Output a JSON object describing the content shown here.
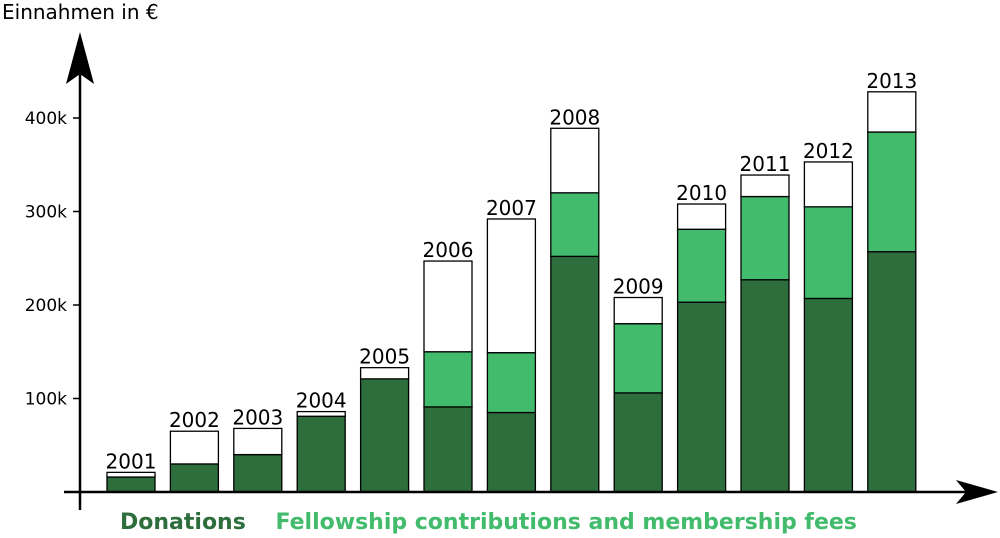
{
  "chart_data": {
    "type": "bar",
    "stacked": true,
    "ylabel": "Einnahmen in €",
    "ylim": [
      0,
      450000
    ],
    "yticks": [
      {
        "value": 100000,
        "label": "100k"
      },
      {
        "value": 200000,
        "label": "200k"
      },
      {
        "value": 300000,
        "label": "300k"
      },
      {
        "value": 400000,
        "label": "400k"
      }
    ],
    "categories": [
      "2001",
      "2002",
      "2003",
      "2004",
      "2005",
      "2006",
      "2007",
      "2008",
      "2009",
      "2010",
      "2011",
      "2012",
      "2013"
    ],
    "series": [
      {
        "name": "Donations",
        "color": "#2d6e3c",
        "values": [
          16000,
          30000,
          40000,
          81000,
          121000,
          91000,
          85000,
          252000,
          106000,
          203000,
          227000,
          207000,
          257000
        ]
      },
      {
        "name": "Fellowship contributions and membership fees",
        "color": "#43bb6d",
        "values": [
          0,
          0,
          0,
          0,
          0,
          59000,
          64000,
          68000,
          74000,
          78000,
          89000,
          98000,
          128000
        ]
      },
      {
        "name": "",
        "color": "#ffffff",
        "values": [
          5000,
          35000,
          28000,
          5000,
          12000,
          97000,
          143000,
          69000,
          28000,
          27000,
          23000,
          48000,
          43000
        ]
      }
    ],
    "grid": false,
    "legend": "bottom"
  },
  "legend": {
    "donations": "Donations",
    "fellowship": "Fellowship contributions and membership fees"
  }
}
